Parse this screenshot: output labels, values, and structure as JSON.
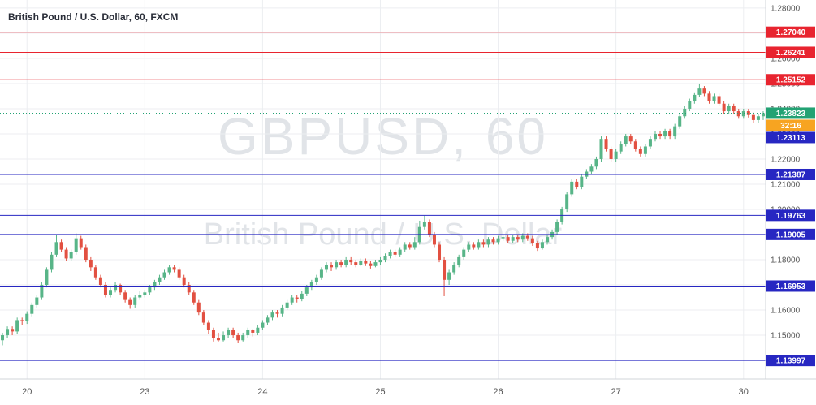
{
  "header": {
    "title": "British Pound / U.S. Dollar, 60, FXCM"
  },
  "watermark": {
    "line1": "GBPUSD, 60",
    "line2": "British Pound / U.S. Dollar"
  },
  "chart_data": {
    "type": "candlestick",
    "symbol": "GBPUSD",
    "interval": "60",
    "exchange": "FXCM",
    "up_color": "#58b588",
    "down_color": "#e25041",
    "grid_color": "#eceef1",
    "y_axis": {
      "min": 1.1326,
      "max": 1.2832,
      "labels": [
        "1.28000",
        "1.27000",
        "1.26000",
        "1.25000",
        "1.24000",
        "1.23000",
        "1.22000",
        "1.21000",
        "1.20000",
        "1.19000",
        "1.18000",
        "1.17000",
        "1.16000",
        "1.15000",
        "1.14000"
      ]
    },
    "x_ticks": [
      {
        "index": 5,
        "label": "20"
      },
      {
        "index": 29,
        "label": "23"
      },
      {
        "index": 53,
        "label": "24"
      },
      {
        "index": 77,
        "label": "25"
      },
      {
        "index": 101,
        "label": "26"
      },
      {
        "index": 125,
        "label": "27"
      },
      {
        "index": 151,
        "label": "30"
      }
    ],
    "levels": [
      {
        "price": 1.2704,
        "label": "1.27040",
        "color": "#e8242f",
        "type": "resistance"
      },
      {
        "price": 1.26241,
        "label": "1.26241",
        "color": "#e8242f",
        "type": "resistance"
      },
      {
        "price": 1.25152,
        "label": "1.25152",
        "color": "#e8242f",
        "type": "resistance"
      },
      {
        "price": 1.23113,
        "label": "1.23113",
        "color": "#2727c2",
        "type": "support"
      },
      {
        "price": 1.21387,
        "label": "1.21387",
        "color": "#2727c2",
        "type": "support"
      },
      {
        "price": 1.19763,
        "label": "1.19763",
        "color": "#2727c2",
        "type": "support"
      },
      {
        "price": 1.19005,
        "label": "1.19005",
        "color": "#2727c2",
        "type": "support"
      },
      {
        "price": 1.16953,
        "label": "1.16953",
        "color": "#2727c2",
        "type": "support"
      },
      {
        "price": 1.13997,
        "label": "1.13997",
        "color": "#2727c2",
        "type": "support"
      }
    ],
    "last_price": {
      "value": 1.23823,
      "label": "1.23823",
      "color": "#22a273",
      "countdown": "32:16",
      "countdown_color": "#f7a421"
    },
    "candles": [
      [
        1.148,
        1.151,
        1.146,
        1.15
      ],
      [
        1.15,
        1.1535,
        1.149,
        1.1525
      ],
      [
        1.1525,
        1.1535,
        1.15,
        1.1515
      ],
      [
        1.1515,
        1.157,
        1.1505,
        1.156
      ],
      [
        1.156,
        1.157,
        1.154,
        1.1555
      ],
      [
        1.1555,
        1.1595,
        1.1545,
        1.1585
      ],
      [
        1.1585,
        1.163,
        1.1575,
        1.162
      ],
      [
        1.162,
        1.166,
        1.161,
        1.165
      ],
      [
        1.165,
        1.171,
        1.164,
        1.17
      ],
      [
        1.17,
        1.177,
        1.169,
        1.176
      ],
      [
        1.176,
        1.183,
        1.175,
        1.182
      ],
      [
        1.182,
        1.19,
        1.181,
        1.187
      ],
      [
        1.187,
        1.188,
        1.183,
        1.184
      ],
      [
        1.184,
        1.185,
        1.1795,
        1.1805
      ],
      [
        1.1805,
        1.184,
        1.1795,
        1.183
      ],
      [
        1.183,
        1.1905,
        1.182,
        1.1885
      ],
      [
        1.1885,
        1.1895,
        1.184,
        1.185
      ],
      [
        1.185,
        1.186,
        1.179,
        1.18
      ],
      [
        1.18,
        1.181,
        1.1755,
        1.177
      ],
      [
        1.177,
        1.178,
        1.172,
        1.173
      ],
      [
        1.173,
        1.174,
        1.169,
        1.17
      ],
      [
        1.17,
        1.171,
        1.165,
        1.166
      ],
      [
        1.166,
        1.169,
        1.165,
        1.168
      ],
      [
        1.168,
        1.171,
        1.167,
        1.17
      ],
      [
        1.17,
        1.1705,
        1.166,
        1.167
      ],
      [
        1.167,
        1.168,
        1.163,
        1.164
      ],
      [
        1.164,
        1.165,
        1.1605,
        1.162
      ],
      [
        1.162,
        1.166,
        1.161,
        1.165
      ],
      [
        1.165,
        1.1675,
        1.164,
        1.166
      ],
      [
        1.166,
        1.168,
        1.165,
        1.167
      ],
      [
        1.167,
        1.17,
        1.166,
        1.169
      ],
      [
        1.169,
        1.172,
        1.168,
        1.171
      ],
      [
        1.171,
        1.174,
        1.17,
        1.173
      ],
      [
        1.173,
        1.176,
        1.172,
        1.175
      ],
      [
        1.175,
        1.178,
        1.174,
        1.177
      ],
      [
        1.177,
        1.178,
        1.175,
        1.176
      ],
      [
        1.176,
        1.177,
        1.172,
        1.173
      ],
      [
        1.173,
        1.174,
        1.169,
        1.17
      ],
      [
        1.17,
        1.171,
        1.166,
        1.167
      ],
      [
        1.167,
        1.168,
        1.162,
        1.163
      ],
      [
        1.163,
        1.164,
        1.158,
        1.159
      ],
      [
        1.159,
        1.16,
        1.154,
        1.155
      ],
      [
        1.155,
        1.156,
        1.1505,
        1.152
      ],
      [
        1.152,
        1.153,
        1.1475,
        1.149
      ],
      [
        1.149,
        1.151,
        1.1475,
        1.148
      ],
      [
        1.148,
        1.1515,
        1.1475,
        1.15
      ],
      [
        1.15,
        1.153,
        1.149,
        1.152
      ],
      [
        1.152,
        1.153,
        1.149,
        1.15
      ],
      [
        1.15,
        1.151,
        1.147,
        1.148
      ],
      [
        1.148,
        1.151,
        1.1475,
        1.15
      ],
      [
        1.15,
        1.153,
        1.149,
        1.152
      ],
      [
        1.152,
        1.1525,
        1.1495,
        1.151
      ],
      [
        1.151,
        1.154,
        1.15,
        1.153
      ],
      [
        1.153,
        1.156,
        1.152,
        1.155
      ],
      [
        1.155,
        1.158,
        1.154,
        1.157
      ],
      [
        1.157,
        1.16,
        1.156,
        1.159
      ],
      [
        1.159,
        1.16,
        1.157,
        1.1585
      ],
      [
        1.1585,
        1.162,
        1.1575,
        1.161
      ],
      [
        1.161,
        1.164,
        1.16,
        1.163
      ],
      [
        1.163,
        1.166,
        1.162,
        1.165
      ],
      [
        1.165,
        1.166,
        1.163,
        1.1645
      ],
      [
        1.1645,
        1.1675,
        1.1635,
        1.1665
      ],
      [
        1.1665,
        1.17,
        1.1655,
        1.169
      ],
      [
        1.169,
        1.172,
        1.168,
        1.171
      ],
      [
        1.171,
        1.174,
        1.17,
        1.173
      ],
      [
        1.173,
        1.177,
        1.172,
        1.176
      ],
      [
        1.176,
        1.179,
        1.175,
        1.178
      ],
      [
        1.178,
        1.179,
        1.1755,
        1.177
      ],
      [
        1.177,
        1.18,
        1.176,
        1.179
      ],
      [
        1.179,
        1.18,
        1.177,
        1.178
      ],
      [
        1.178,
        1.181,
        1.177,
        1.18
      ],
      [
        1.18,
        1.181,
        1.178,
        1.179
      ],
      [
        1.179,
        1.18,
        1.177,
        1.178
      ],
      [
        1.178,
        1.1805,
        1.1775,
        1.1795
      ],
      [
        1.1795,
        1.1805,
        1.1775,
        1.1785
      ],
      [
        1.1785,
        1.1795,
        1.1765,
        1.1775
      ],
      [
        1.1775,
        1.18,
        1.177,
        1.179
      ],
      [
        1.179,
        1.181,
        1.178,
        1.18
      ],
      [
        1.18,
        1.1825,
        1.179,
        1.1815
      ],
      [
        1.1815,
        1.184,
        1.1805,
        1.183
      ],
      [
        1.183,
        1.184,
        1.181,
        1.182
      ],
      [
        1.182,
        1.185,
        1.181,
        1.184
      ],
      [
        1.184,
        1.187,
        1.183,
        1.186
      ],
      [
        1.186,
        1.187,
        1.184,
        1.185
      ],
      [
        1.185,
        1.189,
        1.184,
        1.187
      ],
      [
        1.187,
        1.1955,
        1.186,
        1.193
      ],
      [
        1.193,
        1.1975,
        1.192,
        1.195
      ],
      [
        1.195,
        1.196,
        1.189,
        1.19
      ],
      [
        1.19,
        1.191,
        1.185,
        1.186
      ],
      [
        1.186,
        1.187,
        1.179,
        1.18
      ],
      [
        1.18,
        1.181,
        1.1655,
        1.172
      ],
      [
        1.172,
        1.176,
        1.17,
        1.175
      ],
      [
        1.175,
        1.179,
        1.174,
        1.178
      ],
      [
        1.178,
        1.182,
        1.177,
        1.181
      ],
      [
        1.181,
        1.185,
        1.18,
        1.184
      ],
      [
        1.184,
        1.187,
        1.183,
        1.186
      ],
      [
        1.186,
        1.187,
        1.184,
        1.185
      ],
      [
        1.185,
        1.188,
        1.184,
        1.187
      ],
      [
        1.187,
        1.188,
        1.185,
        1.186
      ],
      [
        1.186,
        1.189,
        1.185,
        1.188
      ],
      [
        1.188,
        1.189,
        1.186,
        1.187
      ],
      [
        1.187,
        1.1895,
        1.186,
        1.1885
      ],
      [
        1.1885,
        1.19,
        1.1875,
        1.189
      ],
      [
        1.189,
        1.19,
        1.1865,
        1.1875
      ],
      [
        1.1875,
        1.19,
        1.1865,
        1.189
      ],
      [
        1.189,
        1.19,
        1.187,
        1.188
      ],
      [
        1.188,
        1.1905,
        1.187,
        1.1895
      ],
      [
        1.1895,
        1.1905,
        1.1875,
        1.1885
      ],
      [
        1.1885,
        1.1895,
        1.1855,
        1.1865
      ],
      [
        1.1865,
        1.1875,
        1.1835,
        1.1845
      ],
      [
        1.1845,
        1.188,
        1.184,
        1.187
      ],
      [
        1.187,
        1.19,
        1.186,
        1.189
      ],
      [
        1.189,
        1.192,
        1.188,
        1.191
      ],
      [
        1.191,
        1.196,
        1.19,
        1.195
      ],
      [
        1.195,
        1.201,
        1.194,
        1.2
      ],
      [
        1.2,
        1.207,
        1.199,
        1.206
      ],
      [
        1.206,
        1.212,
        1.205,
        1.211
      ],
      [
        1.211,
        1.212,
        1.208,
        1.209
      ],
      [
        1.209,
        1.214,
        1.208,
        1.213
      ],
      [
        1.213,
        1.216,
        1.212,
        1.215
      ],
      [
        1.215,
        1.218,
        1.214,
        1.217
      ],
      [
        1.217,
        1.221,
        1.216,
        1.22
      ],
      [
        1.22,
        1.229,
        1.219,
        1.228
      ],
      [
        1.228,
        1.229,
        1.223,
        1.224
      ],
      [
        1.224,
        1.225,
        1.219,
        1.22
      ],
      [
        1.22,
        1.224,
        1.219,
        1.223
      ],
      [
        1.223,
        1.227,
        1.222,
        1.226
      ],
      [
        1.226,
        1.23,
        1.225,
        1.229
      ],
      [
        1.229,
        1.23,
        1.226,
        1.227
      ],
      [
        1.227,
        1.228,
        1.223,
        1.224
      ],
      [
        1.224,
        1.225,
        1.221,
        1.222
      ],
      [
        1.222,
        1.226,
        1.221,
        1.225
      ],
      [
        1.225,
        1.229,
        1.224,
        1.228
      ],
      [
        1.228,
        1.231,
        1.227,
        1.23
      ],
      [
        1.23,
        1.231,
        1.228,
        1.229
      ],
      [
        1.229,
        1.232,
        1.228,
        1.231
      ],
      [
        1.231,
        1.232,
        1.228,
        1.229
      ],
      [
        1.229,
        1.234,
        1.228,
        1.233
      ],
      [
        1.233,
        1.238,
        1.232,
        1.237
      ],
      [
        1.237,
        1.241,
        1.236,
        1.24
      ],
      [
        1.24,
        1.244,
        1.239,
        1.243
      ],
      [
        1.243,
        1.2465,
        1.242,
        1.2455
      ],
      [
        1.2455,
        1.25,
        1.2445,
        1.248
      ],
      [
        1.248,
        1.249,
        1.245,
        1.246
      ],
      [
        1.246,
        1.247,
        1.242,
        1.243
      ],
      [
        1.243,
        1.246,
        1.242,
        1.245
      ],
      [
        1.245,
        1.246,
        1.241,
        1.242
      ],
      [
        1.242,
        1.243,
        1.238,
        1.239
      ],
      [
        1.239,
        1.242,
        1.238,
        1.241
      ],
      [
        1.241,
        1.242,
        1.238,
        1.239
      ],
      [
        1.239,
        1.24,
        1.236,
        1.237
      ],
      [
        1.237,
        1.24,
        1.236,
        1.239
      ],
      [
        1.239,
        1.24,
        1.2365,
        1.2375
      ],
      [
        1.2375,
        1.2385,
        1.2345,
        1.2355
      ],
      [
        1.2355,
        1.238,
        1.2345,
        1.237
      ],
      [
        1.237,
        1.239,
        1.2355,
        1.23823
      ]
    ]
  }
}
